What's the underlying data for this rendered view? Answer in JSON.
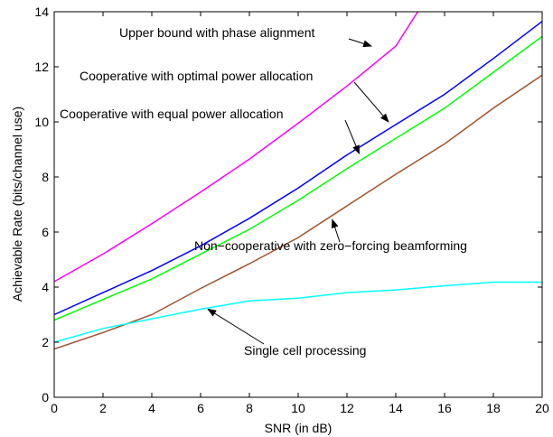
{
  "chart_data": {
    "type": "line",
    "xlabel": "SNR (in dB)",
    "ylabel": "Achievable Rate (bits/channel use)",
    "xlim": [
      0,
      20
    ],
    "ylim": [
      0,
      14
    ],
    "xticks": [
      0,
      2,
      4,
      6,
      8,
      10,
      12,
      14,
      16,
      18,
      20
    ],
    "yticks": [
      0,
      2,
      4,
      6,
      8,
      10,
      12,
      14
    ],
    "grid": false,
    "legend": "none",
    "series": [
      {
        "color": "#ff00ff",
        "x": [
          0,
          2,
          4,
          6,
          8,
          10,
          12,
          14,
          14.9
        ],
        "y": [
          4.2,
          5.2,
          6.3,
          7.45,
          8.65,
          9.95,
          11.3,
          12.75,
          14.0
        ]
      },
      {
        "color": "#0000ff",
        "x": [
          0,
          2,
          4,
          6,
          8,
          10,
          12,
          14,
          16,
          18,
          20
        ],
        "y": [
          3.0,
          3.8,
          4.6,
          5.5,
          6.5,
          7.6,
          8.8,
          9.9,
          11.0,
          12.3,
          13.65
        ]
      },
      {
        "color": "#00ff00",
        "x": [
          0,
          2,
          4,
          6,
          8,
          10,
          12,
          14,
          16,
          18,
          20
        ],
        "y": [
          2.8,
          3.55,
          4.3,
          5.2,
          6.1,
          7.15,
          8.3,
          9.4,
          10.5,
          11.8,
          13.1
        ]
      },
      {
        "color": "#a0522d",
        "x": [
          0,
          2,
          4,
          6,
          8,
          10,
          12,
          14,
          16,
          18,
          20
        ],
        "y": [
          1.75,
          2.35,
          3.0,
          3.95,
          4.85,
          5.8,
          6.95,
          8.1,
          9.2,
          10.5,
          11.7
        ]
      },
      {
        "color": "#00ffff",
        "x": [
          0,
          2,
          4,
          6,
          8,
          10,
          12,
          14,
          16,
          18,
          20
        ],
        "y": [
          2.0,
          2.5,
          2.85,
          3.2,
          3.5,
          3.6,
          3.8,
          3.9,
          4.05,
          4.18,
          4.18
        ]
      }
    ],
    "annotations": [
      {
        "text": "Upper bound with phase alignment",
        "arrow_to": [
          13.0,
          12.75
        ]
      },
      {
        "text": "Cooperative with optimal power allocation",
        "arrow_to": [
          13.7,
          10.0
        ]
      },
      {
        "text": "Cooperative with equal power allocation",
        "arrow_to": [
          12.5,
          8.85
        ]
      },
      {
        "text": "Non−cooperative with zero−forcing beamforming",
        "arrow_to": [
          11.4,
          6.45
        ]
      },
      {
        "text": "Single cell processing",
        "arrow_to": [
          6.3,
          3.2
        ]
      }
    ]
  }
}
